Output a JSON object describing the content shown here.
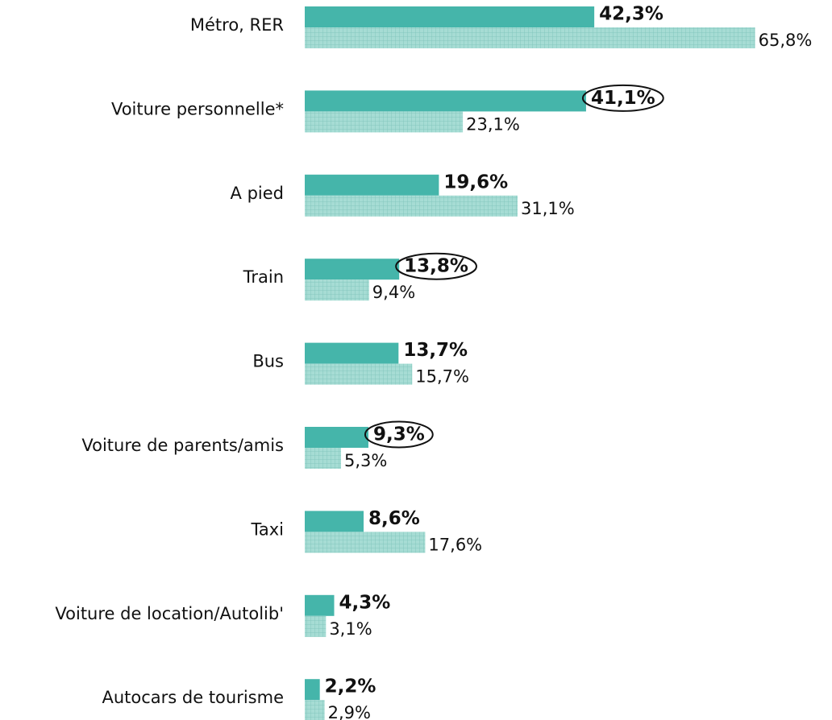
{
  "chart_data": {
    "type": "bar",
    "orientation": "horizontal",
    "categories": [
      "Métro, RER",
      "Voiture personnelle*",
      "A pied",
      "Train",
      "Bus",
      "Voiture de parents/amis",
      "Taxi",
      "Voiture de location/Autolib'",
      "Autocars de tourisme"
    ],
    "series": [
      {
        "color": "#45b5aa",
        "pattern": "solid",
        "values": [
          42.3,
          41.1,
          19.6,
          13.8,
          13.7,
          9.3,
          8.6,
          4.3,
          2.2
        ],
        "value_labels": [
          "42,3%",
          "41,1%",
          "19,6%",
          "13,8%",
          "13,7%",
          "9,3%",
          "8,6%",
          "4,3%",
          "2,2%"
        ]
      },
      {
        "color": "#a6dcd4",
        "pattern": "grid",
        "values": [
          65.8,
          23.1,
          31.1,
          9.4,
          15.7,
          5.3,
          17.6,
          3.1,
          2.9
        ],
        "value_labels": [
          "65,8%",
          "23,1%",
          "31,1%",
          "9,4%",
          "15,7%",
          "5,3%",
          "17,6%",
          "3,1%",
          "2,9%"
        ]
      }
    ],
    "circled": [
      1,
      3,
      5
    ]
  }
}
